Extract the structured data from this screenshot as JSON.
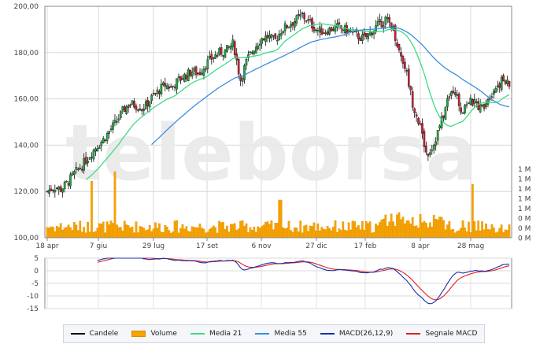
{
  "watermark": "teleborsa",
  "chart_data": [
    {
      "type": "candlestick",
      "panel": "price",
      "ylim": [
        100,
        200
      ],
      "y_ticks": [
        "200,00",
        "180,00",
        "160,00",
        "140,00",
        "120,00",
        "100,00"
      ],
      "x_ticks": [
        "18 apr",
        "7 giu",
        "29 lug",
        "17 set",
        "6 nov",
        "27 dic",
        "17 feb",
        "8 apr",
        "28 mag"
      ],
      "grid": true,
      "series": [
        {
          "name": "Candele",
          "color": "#000000",
          "note": "daily candlesticks, green = up, red = down",
          "close": [
            120,
            122,
            121,
            124,
            128,
            131,
            135,
            139,
            142,
            146,
            150,
            155,
            158,
            157,
            156,
            160,
            163,
            166,
            165,
            168,
            170,
            172,
            171,
            175,
            178,
            180,
            181,
            184,
            168,
            177,
            182,
            186,
            187,
            185,
            190,
            192,
            194,
            196,
            193,
            190,
            189,
            190,
            191,
            190,
            189,
            187,
            186,
            189,
            192,
            194,
            192,
            181,
            173,
            158,
            149,
            136,
            140,
            149,
            158,
            165,
            155,
            159,
            158,
            156,
            161,
            165,
            168,
            166
          ]
        }
      ]
    },
    {
      "type": "line",
      "panel": "price",
      "series": [
        {
          "name": "Media 21",
          "color": "#3ddc84"
        },
        {
          "name": "Media 55",
          "color": "#3a8fe0"
        }
      ]
    },
    {
      "type": "bar",
      "panel": "volume",
      "series": [
        {
          "name": "Volume",
          "color": "#f5a300"
        }
      ],
      "y_ticks": [
        "1 M",
        "1 M",
        "1 M",
        "1 M",
        "1 M",
        "0 M",
        "0 M",
        "0 M"
      ],
      "spikes": [
        {
          "x": "7 giu"
        },
        {
          "x": "6 nov"
        },
        {
          "x": "28 mag"
        }
      ]
    },
    {
      "type": "line",
      "panel": "macd",
      "ylim": [
        -15,
        5
      ],
      "y_ticks": [
        "5",
        "0",
        "-5",
        "-10",
        "-15"
      ],
      "series": [
        {
          "name": "MACD(26,12,9)",
          "color": "#1d2fa8"
        },
        {
          "name": "Segnale MACD",
          "color": "#e02020"
        }
      ]
    }
  ],
  "legend": [
    {
      "label": "Candele",
      "color": "#000000",
      "kind": "line"
    },
    {
      "label": "Volume",
      "color": "#f5a300",
      "kind": "box"
    },
    {
      "label": "Media 21",
      "color": "#3ddc84",
      "kind": "line"
    },
    {
      "label": "Media 55",
      "color": "#3a8fe0",
      "kind": "line"
    },
    {
      "label": "MACD(26,12,9)",
      "color": "#1d2fa8",
      "kind": "line"
    },
    {
      "label": "Segnale MACD",
      "color": "#e02020",
      "kind": "line"
    }
  ]
}
